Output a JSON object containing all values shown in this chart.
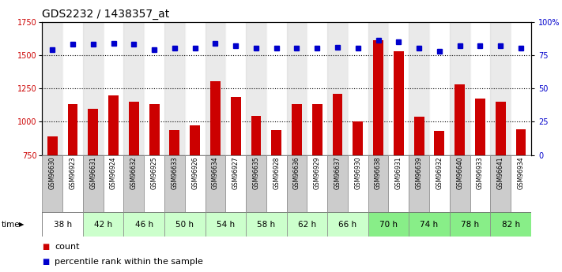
{
  "title": "GDS2232 / 1438357_at",
  "samples": [
    "GSM96630",
    "GSM96923",
    "GSM96631",
    "GSM96924",
    "GSM96632",
    "GSM96925",
    "GSM96633",
    "GSM96926",
    "GSM96634",
    "GSM96927",
    "GSM96635",
    "GSM96928",
    "GSM96636",
    "GSM96929",
    "GSM96637",
    "GSM96930",
    "GSM96638",
    "GSM96931",
    "GSM96639",
    "GSM96932",
    "GSM96640",
    "GSM96933",
    "GSM96641",
    "GSM96934"
  ],
  "counts": [
    890,
    1130,
    1095,
    1195,
    1150,
    1130,
    940,
    970,
    1305,
    1185,
    1045,
    940,
    1130,
    1130,
    1210,
    1005,
    1610,
    1530,
    1040,
    930,
    1280,
    1175,
    1150,
    945
  ],
  "percentiles": [
    79,
    83,
    83,
    84,
    83,
    79,
    80,
    80,
    84,
    82,
    80,
    80,
    80,
    80,
    81,
    80,
    86,
    85,
    80,
    78,
    82,
    82,
    82,
    80
  ],
  "time_groups": [
    {
      "label": "38 h",
      "indices": [
        0,
        1
      ],
      "color": "#ffffff"
    },
    {
      "label": "42 h",
      "indices": [
        2,
        3
      ],
      "color": "#ccffcc"
    },
    {
      "label": "46 h",
      "indices": [
        4,
        5
      ],
      "color": "#ccffcc"
    },
    {
      "label": "50 h",
      "indices": [
        6,
        7
      ],
      "color": "#ccffcc"
    },
    {
      "label": "54 h",
      "indices": [
        8,
        9
      ],
      "color": "#ccffcc"
    },
    {
      "label": "58 h",
      "indices": [
        10,
        11
      ],
      "color": "#ccffcc"
    },
    {
      "label": "62 h",
      "indices": [
        12,
        13
      ],
      "color": "#ccffcc"
    },
    {
      "label": "66 h",
      "indices": [
        14,
        15
      ],
      "color": "#ccffcc"
    },
    {
      "label": "70 h",
      "indices": [
        16,
        17
      ],
      "color": "#88ee88"
    },
    {
      "label": "74 h",
      "indices": [
        18,
        19
      ],
      "color": "#88ee88"
    },
    {
      "label": "78 h",
      "indices": [
        20,
        21
      ],
      "color": "#88ee88"
    },
    {
      "label": "82 h",
      "indices": [
        22,
        23
      ],
      "color": "#88ee88"
    }
  ],
  "bar_color": "#cc0000",
  "dot_color": "#0000cc",
  "ylim_left": [
    750,
    1750
  ],
  "ylim_right": [
    0,
    100
  ],
  "yticks_left": [
    750,
    1000,
    1250,
    1500,
    1750
  ],
  "yticks_right": [
    0,
    25,
    50,
    75,
    100
  ],
  "ylabel_right_labels": [
    "0",
    "25",
    "50",
    "75",
    "100%"
  ],
  "grid_values": [
    1000,
    1250,
    1500
  ],
  "sample_bg_colors": [
    "#cccccc",
    "#ffffff"
  ],
  "title_fontsize": 10,
  "tick_fontsize": 7,
  "legend_fontsize": 8
}
